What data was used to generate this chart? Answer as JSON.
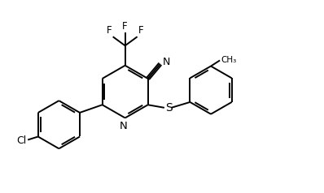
{
  "background": "#ffffff",
  "line_color": "#000000",
  "lw": 1.4,
  "figsize": [
    3.98,
    2.38
  ],
  "dpi": 100,
  "xlim": [
    0,
    10
  ],
  "ylim": [
    0,
    6
  ]
}
